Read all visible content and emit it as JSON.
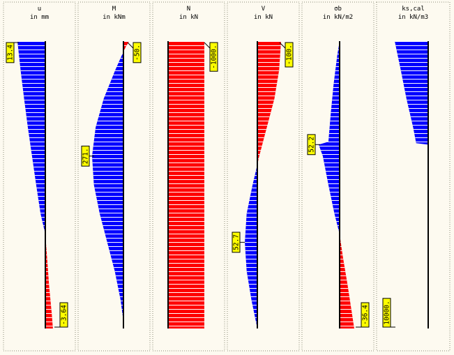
{
  "colors": {
    "background": "#fdfaf0",
    "positive": "#0000ff",
    "negative": "#ff0000",
    "hatch": "#ffffff",
    "axis": "#000000",
    "label_box": "#ffff00",
    "panel_border": "#8c8c78"
  },
  "chart_data": [
    {
      "type": "area",
      "quantity": "u",
      "unit": "in mm",
      "depth_fraction": [
        0,
        0.1,
        0.2,
        0.3,
        0.4,
        0.5,
        0.6,
        0.672,
        0.75,
        0.85,
        0.95,
        1
      ],
      "values": [
        13.4,
        11.9,
        10.2,
        8.4,
        6.4,
        4.4,
        2.3,
        0,
        -0.8,
        -1.8,
        -3.1,
        -3.64
      ],
      "range": [
        -13.4,
        13.4
      ],
      "markers": [
        {
          "label": "13.4",
          "depth_fraction": 0.0,
          "side": "left"
        },
        {
          "label": "-3.64",
          "depth_fraction": 1.0,
          "side": "right"
        }
      ]
    },
    {
      "type": "area",
      "quantity": "M",
      "unit": "in kNm",
      "depth_fraction": [
        0,
        0.02,
        0.05,
        0.1,
        0.2,
        0.3,
        0.4,
        0.5,
        0.6,
        0.7,
        0.8,
        0.9,
        0.96,
        1
      ],
      "values": [
        -50,
        -20,
        15,
        70,
        170,
        240,
        271,
        255,
        205,
        140,
        75,
        25,
        5,
        0
      ],
      "range": [
        -271,
        271
      ],
      "markers": [
        {
          "label": "-50.",
          "depth_fraction": 0.0,
          "side": "right"
        },
        {
          "label": "271.",
          "depth_fraction": 0.4,
          "side": "left"
        }
      ]
    },
    {
      "type": "area",
      "quantity": "N",
      "unit": "in kN",
      "depth_fraction": [
        0,
        1
      ],
      "values": [
        -1000,
        -1000
      ],
      "fill_mode": "full_width",
      "range": [
        -1000,
        1000
      ],
      "markers": [
        {
          "label": "-1000.",
          "depth_fraction": 0.0,
          "side": "right"
        }
      ]
    },
    {
      "type": "area",
      "quantity": "V",
      "unit": "in kN",
      "depth_fraction": [
        0,
        0.1,
        0.2,
        0.3,
        0.4,
        0.43,
        0.5,
        0.6,
        0.7,
        0.8,
        0.9,
        1
      ],
      "values": [
        -100,
        -92,
        -72,
        -40,
        -8,
        0,
        20,
        45,
        52.7,
        45,
        25,
        0
      ],
      "range": [
        -100,
        100
      ],
      "markers": [
        {
          "label": "-100.",
          "depth_fraction": 0.0,
          "side": "right"
        },
        {
          "label": "52.7",
          "depth_fraction": 0.7,
          "side": "left"
        }
      ]
    },
    {
      "type": "area",
      "quantity": "σb",
      "unit": "in kN/m2",
      "depth_fraction": [
        0,
        0.05,
        0.15,
        0.25,
        0.35,
        0.36,
        0.4,
        0.5,
        0.6,
        0.672,
        0.75,
        0.85,
        0.95,
        1
      ],
      "values": [
        0,
        6,
        15,
        22,
        28,
        52.2,
        42,
        28,
        13,
        0,
        -8,
        -20,
        -31,
        -36.4
      ],
      "range": [
        -52.2,
        52.2
      ],
      "markers": [
        {
          "label": "52.2",
          "depth_fraction": 0.36,
          "side": "left"
        },
        {
          "label": "-36.4",
          "depth_fraction": 1.0,
          "side": "right"
        }
      ]
    },
    {
      "type": "area",
      "quantity": "ks,cal",
      "unit": "in kN/m3",
      "depth_fraction": [
        0,
        0.1,
        0.2,
        0.3,
        0.355,
        0.36,
        1
      ],
      "values": [
        10000,
        8200,
        6500,
        4500,
        3600,
        0,
        0
      ],
      "fill_mode": "stepped",
      "range": [
        -10000,
        10000
      ],
      "markers": [
        {
          "label": "10000.",
          "depth_fraction": 1.0,
          "side": "left"
        }
      ]
    }
  ]
}
